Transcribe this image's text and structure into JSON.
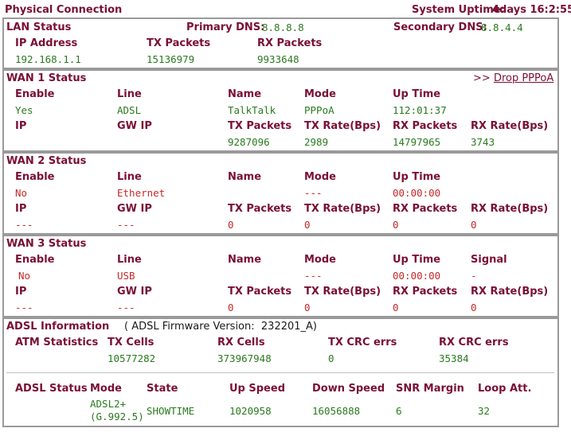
{
  "header": {
    "title": "Physical Connection",
    "uptime_label": "System Uptime:",
    "uptime_value": "4days 16:2:55"
  },
  "lan": {
    "title": "LAN Status",
    "primary_dns_label": "Primary DNS:",
    "primary_dns": "8.8.8.8",
    "secondary_dns_label": "Secondary DNS:",
    "secondary_dns": "8.8.4.4",
    "cols": [
      "IP Address",
      "TX Packets",
      "RX Packets"
    ],
    "ip": "192.168.1.1",
    "tx": "15136979",
    "rx": "9933648"
  },
  "wan1": {
    "title": "WAN 1 Status",
    "action_prefix": ">>",
    "action_link": "Drop PPPoA",
    "row1_labels": [
      "Enable",
      "Line",
      "Name",
      "Mode",
      "Up Time"
    ],
    "row1_values": [
      "Yes",
      "ADSL",
      "TalkTalk",
      "PPPoA",
      "112:01:37"
    ],
    "row2_labels": [
      "IP",
      "GW IP",
      "TX Packets",
      "TX Rate(Bps)",
      "RX Packets",
      "RX Rate(Bps)"
    ],
    "row2_values": [
      "",
      "",
      "9287096",
      "2989",
      "14797965",
      "3743"
    ]
  },
  "wan2": {
    "title": "WAN 2 Status",
    "row1_labels": [
      "Enable",
      "Line",
      "Name",
      "Mode",
      "Up Time"
    ],
    "row1_values": [
      "No",
      "Ethernet",
      "",
      "---",
      "00:00:00"
    ],
    "row2_labels": [
      "IP",
      "GW IP",
      "TX Packets",
      "TX Rate(Bps)",
      "RX Packets",
      "RX Rate(Bps)"
    ],
    "row2_values": [
      "---",
      "---",
      "0",
      "0",
      "0",
      "0"
    ]
  },
  "wan3": {
    "title": "WAN 3 Status",
    "row1_labels": [
      "Enable",
      "Line",
      "Name",
      "Mode",
      "Up Time",
      "Signal"
    ],
    "row1_values": [
      "No",
      "USB",
      "",
      "---",
      "00:00:00",
      "-"
    ],
    "row2_labels": [
      "IP",
      "GW IP",
      "TX Packets",
      "TX Rate(Bps)",
      "RX Packets",
      "RX Rate(Bps)"
    ],
    "row2_values": [
      "---",
      "---",
      "0",
      "0",
      "0",
      "0"
    ]
  },
  "adsl": {
    "title": "ADSL Information",
    "fw_prefix": "( ADSL Firmware Version:",
    "fw_version": "232201_A)",
    "atm_label": "ATM Statistics",
    "atm_cols": [
      "TX Cells",
      "RX Cells",
      "TX CRC errs",
      "RX CRC errs"
    ],
    "atm_vals": [
      "10577282",
      "373967948",
      "0",
      "35384"
    ],
    "status_label": "ADSL Status",
    "status_cols": [
      "Mode",
      "State",
      "Up Speed",
      "Down Speed",
      "SNR Margin",
      "Loop Att."
    ],
    "mode_line1": "ADSL2+",
    "mode_line2": "(G.992.5)",
    "status_vals": [
      "SHOWTIME",
      "1020958",
      "16056888",
      "6",
      "32"
    ]
  }
}
